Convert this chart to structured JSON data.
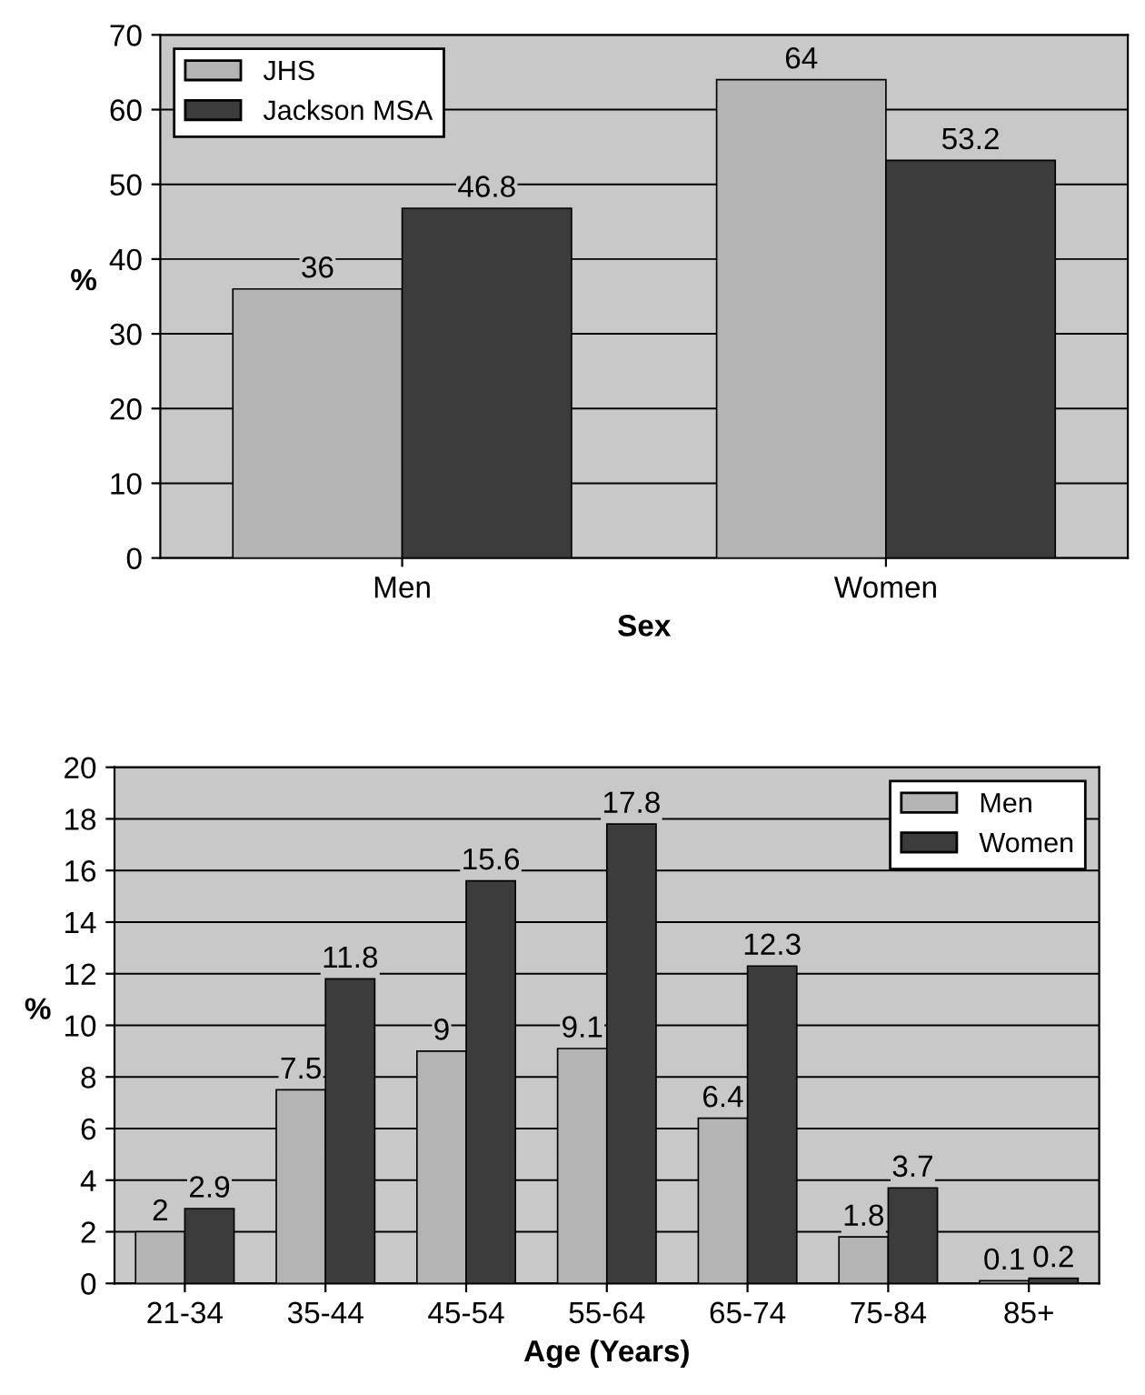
{
  "chart_data": [
    {
      "type": "bar",
      "xlabel": "Sex",
      "ylabel": "%",
      "categories": [
        "Men",
        "Women"
      ],
      "series": [
        {
          "name": "JHS",
          "color": "#b4b4b4",
          "values": [
            36,
            64
          ]
        },
        {
          "name": "Jackson MSA",
          "color": "#3c3c3c",
          "values": [
            46.8,
            53.2
          ]
        }
      ],
      "ylim": [
        0,
        70
      ],
      "yticks": [
        0,
        10,
        20,
        30,
        40,
        50,
        60,
        70
      ],
      "grid": "y",
      "legend": "top left",
      "data_labels": true
    },
    {
      "type": "bar",
      "xlabel": "Age (Years)",
      "ylabel": "%",
      "categories": [
        "21-34",
        "35-44",
        "45-54",
        "55-64",
        "65-74",
        "75-84",
        "85+"
      ],
      "series": [
        {
          "name": "Men",
          "color": "#b4b4b4",
          "values": [
            2,
            7.5,
            9,
            9.1,
            6.4,
            1.8,
            0.1
          ]
        },
        {
          "name": "Women",
          "color": "#3c3c3c",
          "values": [
            2.9,
            11.8,
            15.6,
            17.8,
            12.3,
            3.7,
            0.2
          ]
        }
      ],
      "ylim": [
        0,
        20
      ],
      "yticks": [
        0,
        2,
        4,
        6,
        8,
        10,
        12,
        14,
        16,
        18,
        20
      ],
      "grid": "y",
      "legend": "top right",
      "data_labels": true
    }
  ]
}
